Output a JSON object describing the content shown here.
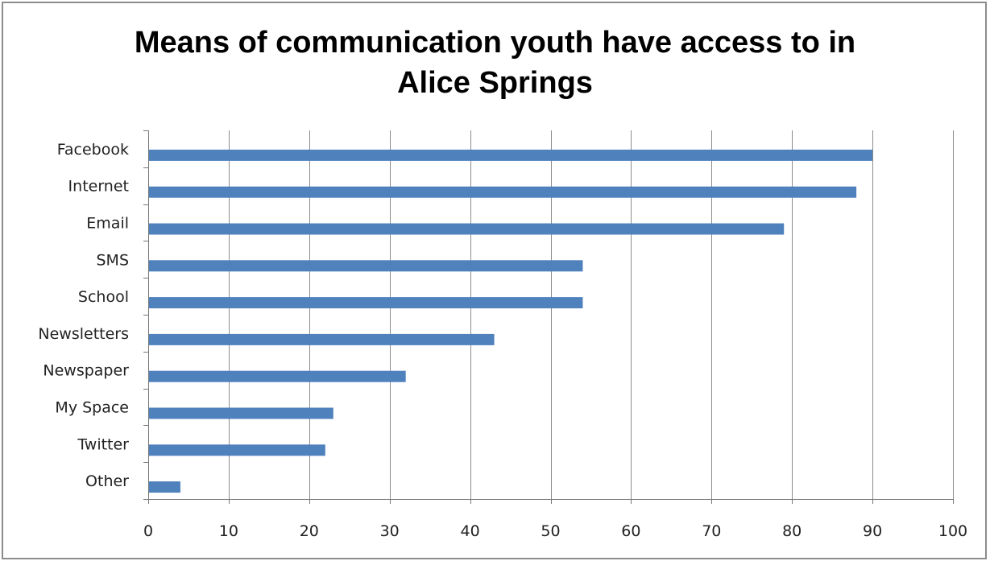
{
  "chart_data": {
    "type": "bar",
    "orientation": "horizontal",
    "title": "Means of communication youth have access to in Alice Springs",
    "title_lines": [
      "Means of communication youth have access to in",
      "Alice Springs"
    ],
    "categories": [
      "Facebook",
      "Internet",
      "Email",
      "SMS",
      "School",
      "Newsletters",
      "Newspaper",
      "My Space",
      "Twitter",
      "Other"
    ],
    "values": [
      90,
      88,
      79,
      54,
      54,
      43,
      32,
      23,
      22,
      4
    ],
    "xlim": [
      0,
      100
    ],
    "xticks": [
      0,
      10,
      20,
      30,
      40,
      50,
      60,
      70,
      80,
      90,
      100
    ],
    "grid": "vertical",
    "legend": "none",
    "bar_color": "#4f81bd",
    "grid_color": "#8c8c8c"
  }
}
